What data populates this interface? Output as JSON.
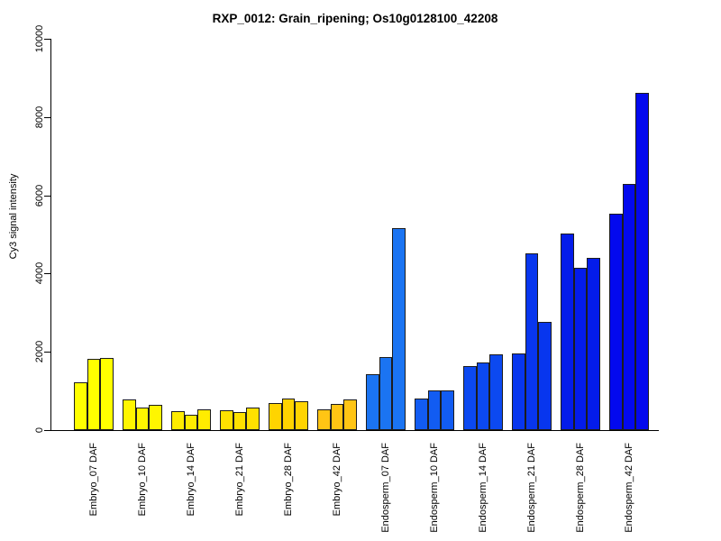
{
  "chart_data": {
    "type": "bar",
    "title": "RXP_0012: Grain_ripening; Os10g0128100_42208",
    "xlabel": "",
    "ylabel": "Cy3 signal intensity",
    "ylim": [
      0,
      10000
    ],
    "yticks": [
      0,
      2000,
      4000,
      6000,
      8000,
      10000
    ],
    "grid": false,
    "legend": false,
    "axis_color": "#000000",
    "bar_border_color": "#1c1c1c",
    "groups": [
      {
        "label": "Embryo_07 DAF",
        "color": "#ffff00",
        "values": [
          1220,
          1820,
          1850
        ]
      },
      {
        "label": "Embryo_10 DAF",
        "color": "#fff600",
        "values": [
          785,
          570,
          645
        ]
      },
      {
        "label": "Embryo_14 DAF",
        "color": "#ffec00",
        "values": [
          490,
          385,
          535
        ]
      },
      {
        "label": "Embryo_21 DAF",
        "color": "#ffe100",
        "values": [
          505,
          450,
          575
        ]
      },
      {
        "label": "Embryo_28 DAF",
        "color": "#ffd400",
        "values": [
          690,
          805,
          745
        ]
      },
      {
        "label": "Embryo_42 DAF",
        "color": "#ffc514",
        "values": [
          535,
          660,
          780
        ]
      },
      {
        "label": "Endosperm_07 DAF",
        "color": "#1b74f2",
        "values": [
          1440,
          1860,
          5160
        ]
      },
      {
        "label": "Endosperm_10 DAF",
        "color": "#125cf2",
        "values": [
          805,
          1010,
          1010
        ]
      },
      {
        "label": "Endosperm_14 DAF",
        "color": "#0c49f0",
        "values": [
          1625,
          1730,
          1935
        ]
      },
      {
        "label": "Endosperm_21 DAF",
        "color": "#0836ee",
        "values": [
          1955,
          4520,
          2755
        ]
      },
      {
        "label": "Endosperm_28 DAF",
        "color": "#041cea",
        "values": [
          5025,
          4145,
          4390
        ]
      },
      {
        "label": "Endosperm_42 DAF",
        "color": "#0309ee",
        "values": [
          5520,
          6290,
          8610
        ]
      }
    ]
  }
}
